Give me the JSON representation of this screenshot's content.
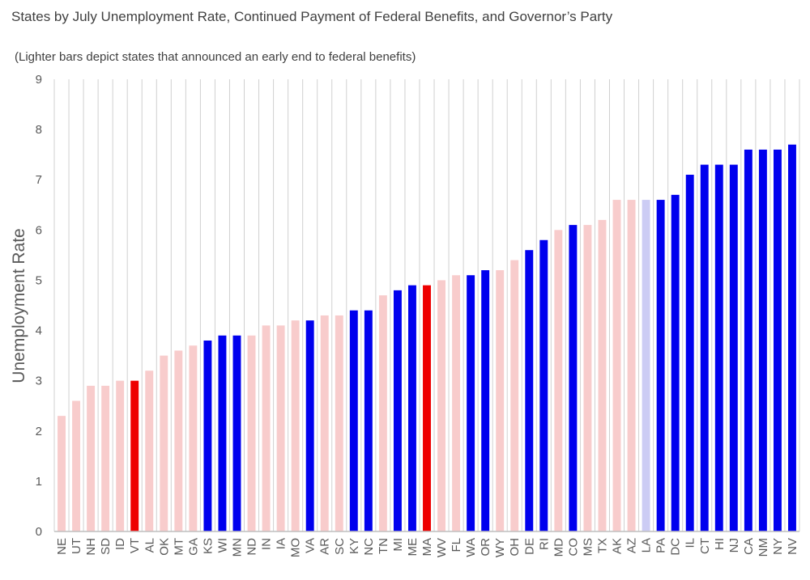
{
  "chart_data": {
    "type": "bar",
    "title": "States by July Unemployment Rate, Continued Payment of Federal Benefits, and Governor’s Party",
    "subtitle": "(Lighter bars depict states that announced an early end to federal benefits)",
    "xlabel": "",
    "ylabel": "Unemployment Rate",
    "ylim": [
      0,
      9
    ],
    "yticks": [
      0,
      1,
      2,
      3,
      4,
      5,
      6,
      7,
      8,
      9
    ],
    "grid": "vertical",
    "legend": "none",
    "categories": [
      "NE",
      "UT",
      "NH",
      "SD",
      "ID",
      "VT",
      "AL",
      "OK",
      "MT",
      "GA",
      "KS",
      "WI",
      "MN",
      "ND",
      "IN",
      "IA",
      "MO",
      "VA",
      "AR",
      "SC",
      "KY",
      "NC",
      "TN",
      "MI",
      "ME",
      "MA",
      "WV",
      "FL",
      "WA",
      "OR",
      "WY",
      "OH",
      "DE",
      "RI",
      "MD",
      "CO",
      "MS",
      "TX",
      "AK",
      "AZ",
      "LA",
      "PA",
      "DC",
      "IL",
      "CT",
      "HI",
      "NJ",
      "CA",
      "NM",
      "NY",
      "NV"
    ],
    "values": [
      2.3,
      2.6,
      2.9,
      2.9,
      3.0,
      3.0,
      3.2,
      3.5,
      3.6,
      3.7,
      3.8,
      3.9,
      3.9,
      3.9,
      4.1,
      4.1,
      4.2,
      4.2,
      4.3,
      4.3,
      4.4,
      4.4,
      4.7,
      4.8,
      4.9,
      4.9,
      5.0,
      5.1,
      5.1,
      5.2,
      5.2,
      5.4,
      5.6,
      5.8,
      6.0,
      6.1,
      6.1,
      6.2,
      6.6,
      6.6,
      6.6,
      6.6,
      6.7,
      7.1,
      7.3,
      7.3,
      7.3,
      7.6,
      7.6,
      7.6,
      7.7
    ],
    "colors": [
      "#f8cccc",
      "#f8cccc",
      "#f8cccc",
      "#f8cccc",
      "#f8cccc",
      "#ee0000",
      "#f8cccc",
      "#f8cccc",
      "#f8cccc",
      "#f8cccc",
      "#0000ee",
      "#0000ee",
      "#0000ee",
      "#f8cccc",
      "#f8cccc",
      "#f8cccc",
      "#f8cccc",
      "#0000ee",
      "#f8cccc",
      "#f8cccc",
      "#0000ee",
      "#0000ee",
      "#f8cccc",
      "#0000ee",
      "#0000ee",
      "#ee0000",
      "#f8cccc",
      "#f8cccc",
      "#0000ee",
      "#0000ee",
      "#f8cccc",
      "#f8cccc",
      "#0000ee",
      "#0000ee",
      "#f8cccc",
      "#0000ee",
      "#f8cccc",
      "#f8cccc",
      "#f8cccc",
      "#f8cccc",
      "#ccccf4",
      "#0000ee",
      "#0000ee",
      "#0000ee",
      "#0000ee",
      "#0000ee",
      "#0000ee",
      "#0000ee",
      "#0000ee",
      "#0000ee",
      "#0000ee"
    ],
    "gridline_color": "#d0d0d0",
    "axis_color": "#bfbfbf"
  }
}
